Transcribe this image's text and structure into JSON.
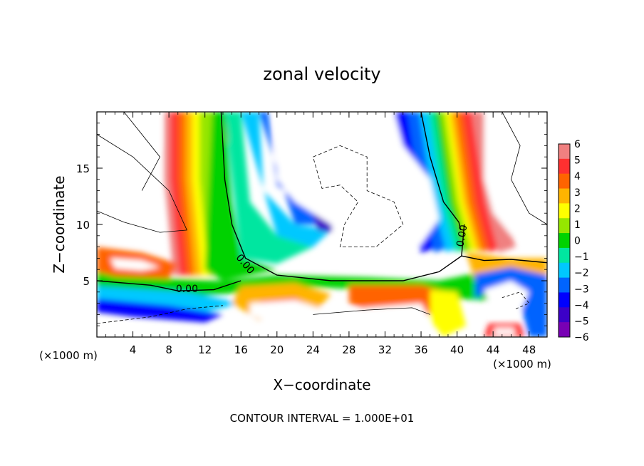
{
  "chart_data": {
    "type": "heatmap",
    "title": "zonal velocity",
    "xlabel": "X−coordinate",
    "ylabel": "Z−coordinate",
    "x_unit_label": "(×1000 m)",
    "y_unit_label": "(×1000 m)",
    "xlim": [
      0,
      50
    ],
    "ylim": [
      0,
      20
    ],
    "x_ticks": [
      4,
      8,
      12,
      16,
      20,
      24,
      28,
      32,
      36,
      40,
      44,
      48
    ],
    "y_ticks": [
      5,
      10,
      15
    ],
    "colorbar": {
      "ticks": [
        6,
        5,
        4,
        3,
        2,
        1,
        0,
        -1,
        -2,
        -3,
        -4,
        -5,
        -6
      ],
      "colors": [
        "#f08080",
        "#ff3030",
        "#ff6400",
        "#ffb400",
        "#ffff00",
        "#96e600",
        "#00d200",
        "#00e6a0",
        "#00c8ff",
        "#0064ff",
        "#0000ff",
        "#3c00c8",
        "#7800b4"
      ],
      "range": [
        -6,
        6
      ]
    },
    "contour_labels": [
      {
        "text": "0.00",
        "x": 10,
        "z": 4.3
      },
      {
        "text": "0.00",
        "x": 16.5,
        "z": 6.5
      },
      {
        "text": "0.00",
        "x": 40.5,
        "z": 9.0
      }
    ],
    "footer": "CONTOUR INTERVAL = 1.000E+01"
  }
}
